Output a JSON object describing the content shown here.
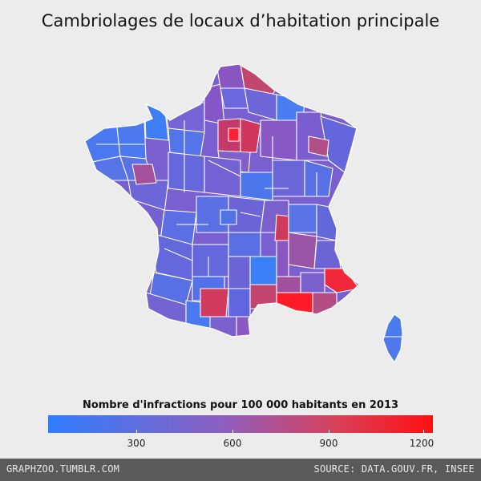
{
  "title": "Cambriolages de locaux d’habitation principale",
  "legend": {
    "title": "Nombre d'infractions pour 100 000 habitants en 2013",
    "ticks": [
      "300",
      "600",
      "900",
      "1200"
    ],
    "color_low": "#2f7dff",
    "color_mid": "#8c5fc0",
    "color_high": "#ff1010"
  },
  "footer": {
    "left": "GRAPHZOO.TUMBLR.COM",
    "right": "SOURCE: DATA.GOUV.FR, INSEE"
  }
}
